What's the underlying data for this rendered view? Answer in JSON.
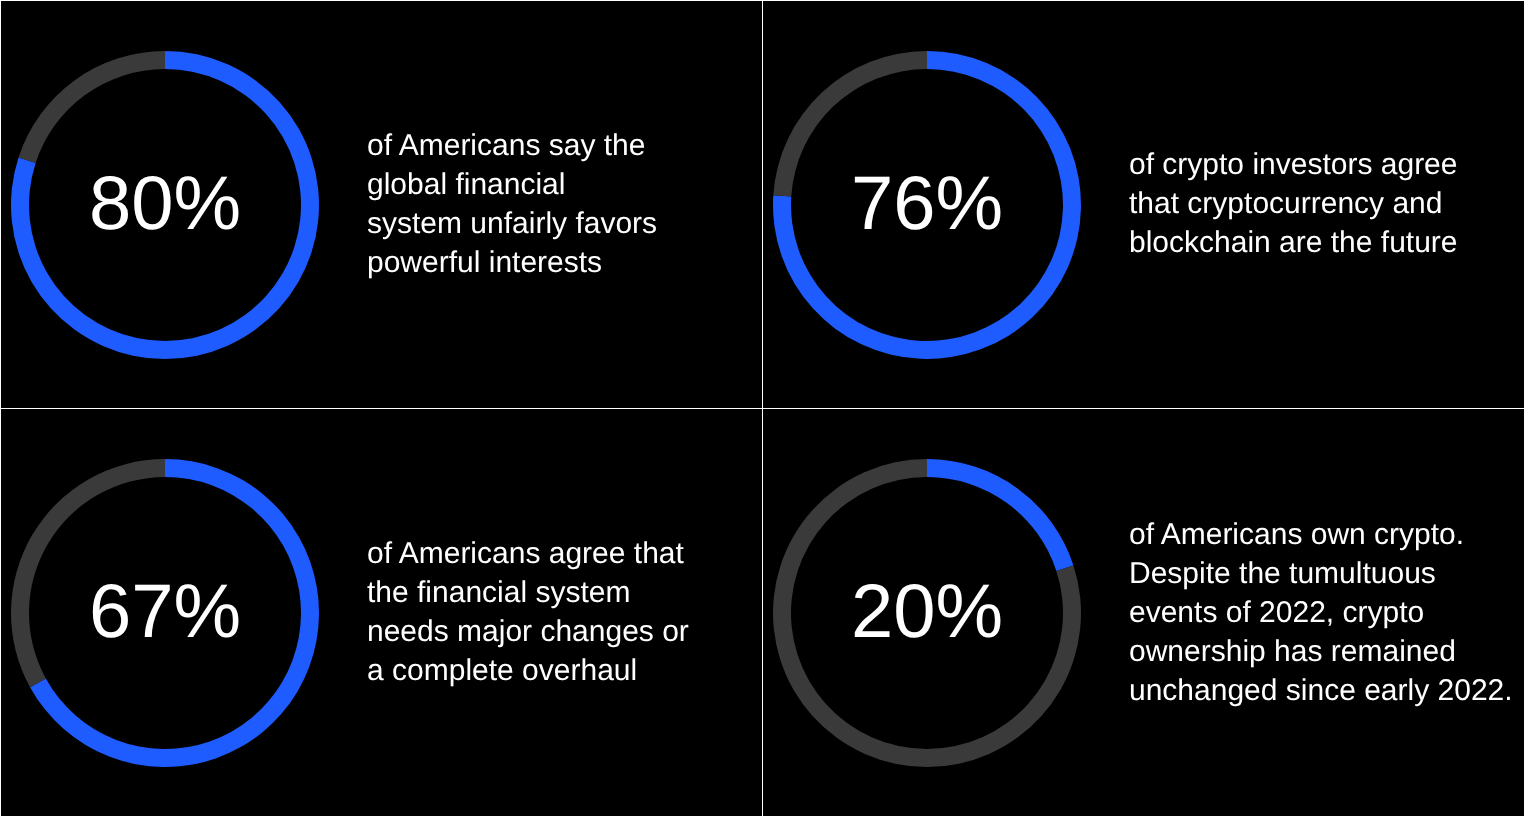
{
  "chart_data": [
    {
      "type": "donut",
      "categories": [
        null,
        null
      ],
      "values": [
        80,
        20
      ],
      "colors": [
        "#1f5cff",
        "#3a3a3a"
      ],
      "value_labels": [
        "80%",
        null
      ],
      "annotations": [
        "of Americans say the\nglobal financial\nsystem unfairly favors\npowerful interests"
      ]
    },
    {
      "type": "donut",
      "categories": [
        null,
        null
      ],
      "values": [
        76,
        24
      ],
      "colors": [
        "#1f5cff",
        "#3a3a3a"
      ],
      "value_labels": [
        "76%",
        null
      ],
      "annotations": [
        "of crypto investors agree\nthat cryptocurrency and\nblockchain are the future"
      ]
    },
    {
      "type": "donut",
      "categories": [
        null,
        null
      ],
      "values": [
        67,
        33
      ],
      "colors": [
        "#1f5cff",
        "#3a3a3a"
      ],
      "value_labels": [
        "67%",
        null
      ],
      "annotations": [
        "of Americans agree that\nthe financial system\nneeds major changes or\na complete overhaul"
      ]
    },
    {
      "type": "donut",
      "categories": [
        null,
        null
      ],
      "values": [
        20,
        80
      ],
      "colors": [
        "#1f5cff",
        "#3a3a3a"
      ],
      "value_labels": [
        "20%",
        null
      ],
      "annotations": [
        "of Americans own crypto.\nDespite the tumultuous\nevents of 2022, crypto\nownership has remained\nunchanged since early 2022."
      ]
    }
  ]
}
